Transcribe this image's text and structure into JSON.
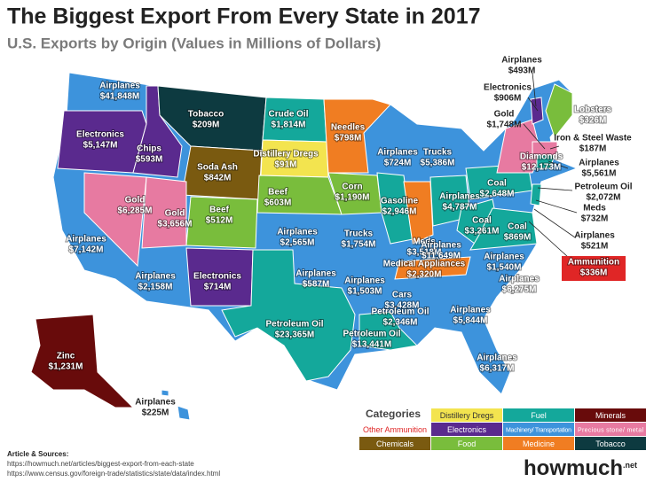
{
  "header": {
    "title": "The Biggest Export From Every State in 2017",
    "subtitle": "U.S. Exports by Origin (Values in Millions of Dollars)"
  },
  "states": [
    {
      "product": "Airplanes",
      "value": "$41,848M"
    },
    {
      "product": "Electronics",
      "value": "$5,147M"
    },
    {
      "product": "Chips",
      "value": "$593M"
    },
    {
      "product": "Tobacco",
      "value": "$209M"
    },
    {
      "product": "Soda Ash",
      "value": "$842M"
    },
    {
      "product": "Crude Oil",
      "value": "$1,814M"
    },
    {
      "product": "Distillery Dregs",
      "value": "$91M"
    },
    {
      "product": "Needles",
      "value": "$798M"
    },
    {
      "product": "Airplanes",
      "value": "$724M"
    },
    {
      "product": "Trucks",
      "value": "$5,386M"
    },
    {
      "product": "Beef",
      "value": "$603M"
    },
    {
      "product": "Corn",
      "value": "$1,190M"
    },
    {
      "product": "Gasoline",
      "value": "$2,946M"
    },
    {
      "product": "Meds",
      "value": "$3,518M"
    },
    {
      "product": "Airplanes",
      "value": "$4,787M"
    },
    {
      "product": "Coal",
      "value": "$2,648M"
    },
    {
      "product": "Gold",
      "value": "$6,285M"
    },
    {
      "product": "Gold",
      "value": "$3,656M"
    },
    {
      "product": "Beef",
      "value": "$512M"
    },
    {
      "product": "Airplanes",
      "value": "$7,142M"
    },
    {
      "product": "Airplanes",
      "value": "$2,565M"
    },
    {
      "product": "Trucks",
      "value": "$1,754M"
    },
    {
      "product": "Coal",
      "value": "$3,261M"
    },
    {
      "product": "Coal",
      "value": "$869M"
    },
    {
      "product": "Airplanes",
      "value": "$11,649M"
    },
    {
      "product": "Medical Appliances",
      "value": "$2,320M"
    },
    {
      "product": "Airplanes",
      "value": "$1,540M"
    },
    {
      "product": "Airplanes",
      "value": "$2,158M"
    },
    {
      "product": "Electronics",
      "value": "$714M"
    },
    {
      "product": "Airplanes",
      "value": "$587M"
    },
    {
      "product": "Airplanes",
      "value": "$1,503M"
    },
    {
      "product": "Cars",
      "value": "$3,428M"
    },
    {
      "product": "Airplanes",
      "value": "$5,844M"
    },
    {
      "product": "Airplanes",
      "value": "$6,275M"
    },
    {
      "product": "Petroleum Oil",
      "value": "$23,365M"
    },
    {
      "product": "Petroleum Oil",
      "value": "$2,346M"
    },
    {
      "product": "Petroleum Oil",
      "value": "$13,441M"
    },
    {
      "product": "Airplanes",
      "value": "$6,317M"
    },
    {
      "product": "Zinc",
      "value": "$1,231M"
    },
    {
      "product": "Airplanes",
      "value": "$225M"
    },
    {
      "product": "Airplanes",
      "value": "$493M"
    },
    {
      "product": "Electronics",
      "value": "$906M"
    },
    {
      "product": "Gold",
      "value": "$1,748M"
    },
    {
      "product": "Lobsters",
      "value": "$326M"
    },
    {
      "product": "Iron & Steel Waste",
      "value": "$187M"
    },
    {
      "product": "Diamonds",
      "value": "$12,173M"
    },
    {
      "product": "Airplanes",
      "value": "$5,561M"
    },
    {
      "product": "Petroleum Oil",
      "value": "$2,072M"
    },
    {
      "product": "Meds",
      "value": "$732M"
    },
    {
      "product": "Airplanes",
      "value": "$521M"
    },
    {
      "product": "Ammunition",
      "value": "$336M"
    }
  ],
  "legend": {
    "title": "Categories",
    "items": [
      {
        "label": "Distillery Dregs",
        "color": "#f3e44f"
      },
      {
        "label": "Fuel",
        "color": "#14a89b"
      },
      {
        "label": "Minerals",
        "color": "#680b0b"
      },
      {
        "label": "Other Ammunition",
        "color": "#e02626"
      },
      {
        "label": "Electronics",
        "color": "#5a2a8e"
      },
      {
        "label": "Machinery/ Transportation",
        "color": "#3d93dc"
      },
      {
        "label": "Precious stone/ metal",
        "color": "#e77aa1"
      },
      {
        "label": "Chemicals",
        "color": "#7a5a10"
      },
      {
        "label": "Food",
        "color": "#79bd3c"
      },
      {
        "label": "Medicine",
        "color": "#f07d22"
      },
      {
        "label": "Tobacco",
        "color": "#0d3a40"
      }
    ]
  },
  "sources": {
    "heading": "Article & Sources:",
    "links": [
      "https://howmuch.net/articles/biggest-export-from-each-state",
      "https://www.census.gov/foreign-trade/statistics/state/data/index.html"
    ]
  },
  "logo": {
    "name": "howmuch",
    "suffix": ".net"
  }
}
